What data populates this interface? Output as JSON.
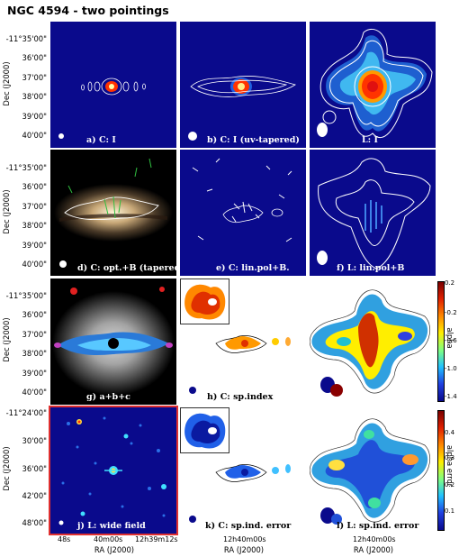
{
  "title": "NGC 4594 - two pointings",
  "panels": [
    {
      "label": "a) C: I"
    },
    {
      "label": "b) C: I (uv-tapered)"
    },
    {
      "label": "L: I"
    },
    {
      "label": "d) C: opt.+B (tapered)"
    },
    {
      "label": "e) C: lin.pol+B."
    },
    {
      "label": "f) L: lin.pol+B"
    },
    {
      "label": "g) a+b+c"
    },
    {
      "label": "h) C: sp.index"
    },
    {
      "label": "i) L: sp.index"
    },
    {
      "label": "j) L: wide field"
    },
    {
      "label": "k) C: sp.ind. error"
    },
    {
      "label": "l) L: sp.ind. error"
    }
  ],
  "axes": {
    "ylabel": "Dec (J2000)",
    "xlabel": "RA (J2000)",
    "dec_ticks_std": [
      "-11°35'00\"",
      "36'00\"",
      "37'00\"",
      "38'00\"",
      "39'00\"",
      "40'00\""
    ],
    "dec_ticks_wide": [
      "-11°24'00\"",
      "30'00\"",
      "36'00\"",
      "42'00\"",
      "48'00\""
    ],
    "ra_ticks_wide": [
      "48s",
      "40m00s",
      "12h39m12s"
    ],
    "ra_tick_std": "12h40m00s"
  },
  "colorbars": {
    "alpha": {
      "label": "alpha",
      "ticks": [
        "0.2",
        "-0.2",
        "-0.6",
        "-1.0",
        "-1.4"
      ]
    },
    "alpha_error": {
      "label": "alpha error",
      "ticks": [
        "0.4",
        "0.3",
        "0.2",
        "0.1"
      ]
    }
  },
  "colors": {
    "dark_blue": "#0a0a8c",
    "red_frame": "#e03030",
    "contour": "#ffffff"
  }
}
